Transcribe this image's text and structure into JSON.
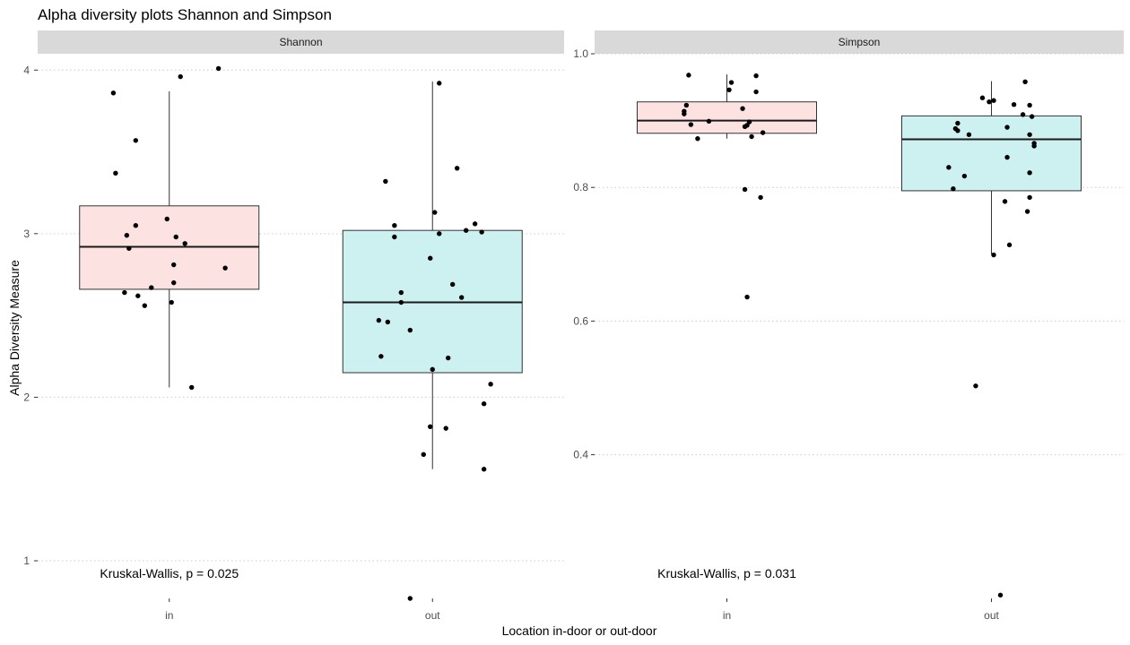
{
  "chart_data": {
    "type": "box",
    "title": "Alpha diversity plots Shannon and Simpson",
    "xlabel": "Location in-door or out-door",
    "ylabel": "Alpha Diversity Measure",
    "grid": "horizontal dotted major lines",
    "legend": "none",
    "categories": [
      "in",
      "out"
    ],
    "colors": {
      "in": "#fde2e2",
      "out": "#cdf0f1",
      "box_stroke": "#333333",
      "strip": "#d9d9d9",
      "grid": "#cccccc",
      "point": "#000000"
    },
    "panels": [
      {
        "name": "Shannon",
        "ylim": [
          0.77,
          4.1
        ],
        "yticks": [
          1,
          2,
          3,
          4
        ],
        "ytick_labels": [
          "1",
          "2",
          "3",
          "4"
        ],
        "boxes": [
          {
            "category": "in",
            "whisker_low": 2.06,
            "q1": 2.66,
            "median": 2.92,
            "q3": 3.17,
            "whisker_high": 3.87
          },
          {
            "category": "out",
            "whisker_low": 1.56,
            "q1": 2.15,
            "median": 2.58,
            "q3": 3.02,
            "whisker_high": 3.93
          }
        ],
        "points": [
          {
            "category": "in",
            "jitter": -0.25,
            "y": 3.86
          },
          {
            "category": "in",
            "jitter": 0.05,
            "y": 3.96
          },
          {
            "category": "in",
            "jitter": 0.22,
            "y": 4.01
          },
          {
            "category": "in",
            "jitter": -0.15,
            "y": 3.57
          },
          {
            "category": "in",
            "jitter": -0.24,
            "y": 3.37
          },
          {
            "category": "in",
            "jitter": -0.01,
            "y": 3.09
          },
          {
            "category": "in",
            "jitter": -0.15,
            "y": 3.05
          },
          {
            "category": "in",
            "jitter": -0.19,
            "y": 2.99
          },
          {
            "category": "in",
            "jitter": 0.03,
            "y": 2.98
          },
          {
            "category": "in",
            "jitter": 0.07,
            "y": 2.94
          },
          {
            "category": "in",
            "jitter": -0.18,
            "y": 2.91
          },
          {
            "category": "in",
            "jitter": 0.02,
            "y": 2.81
          },
          {
            "category": "in",
            "jitter": 0.25,
            "y": 2.79
          },
          {
            "category": "in",
            "jitter": 0.02,
            "y": 2.7
          },
          {
            "category": "in",
            "jitter": -0.08,
            "y": 2.67
          },
          {
            "category": "in",
            "jitter": -0.2,
            "y": 2.64
          },
          {
            "category": "in",
            "jitter": -0.14,
            "y": 2.62
          },
          {
            "category": "in",
            "jitter": 0.01,
            "y": 2.58
          },
          {
            "category": "in",
            "jitter": -0.11,
            "y": 2.56
          },
          {
            "category": "in",
            "jitter": 0.1,
            "y": 2.06
          },
          {
            "category": "out",
            "jitter": 0.03,
            "y": 3.92
          },
          {
            "category": "out",
            "jitter": 0.11,
            "y": 3.4
          },
          {
            "category": "out",
            "jitter": -0.21,
            "y": 3.32
          },
          {
            "category": "out",
            "jitter": 0.01,
            "y": 3.13
          },
          {
            "category": "out",
            "jitter": -0.17,
            "y": 3.05
          },
          {
            "category": "out",
            "jitter": 0.19,
            "y": 3.06
          },
          {
            "category": "out",
            "jitter": 0.15,
            "y": 3.02
          },
          {
            "category": "out",
            "jitter": 0.22,
            "y": 3.01
          },
          {
            "category": "out",
            "jitter": 0.03,
            "y": 3.0
          },
          {
            "category": "out",
            "jitter": -0.17,
            "y": 2.98
          },
          {
            "category": "out",
            "jitter": -0.01,
            "y": 2.85
          },
          {
            "category": "out",
            "jitter": 0.09,
            "y": 2.69
          },
          {
            "category": "out",
            "jitter": -0.14,
            "y": 2.64
          },
          {
            "category": "out",
            "jitter": 0.13,
            "y": 2.61
          },
          {
            "category": "out",
            "jitter": -0.14,
            "y": 2.58
          },
          {
            "category": "out",
            "jitter": -0.24,
            "y": 2.47
          },
          {
            "category": "out",
            "jitter": -0.2,
            "y": 2.46
          },
          {
            "category": "out",
            "jitter": -0.1,
            "y": 2.41
          },
          {
            "category": "out",
            "jitter": -0.23,
            "y": 2.25
          },
          {
            "category": "out",
            "jitter": 0.07,
            "y": 2.24
          },
          {
            "category": "out",
            "jitter": 0.0,
            "y": 2.17
          },
          {
            "category": "out",
            "jitter": 0.26,
            "y": 2.08
          },
          {
            "category": "out",
            "jitter": 0.23,
            "y": 1.96
          },
          {
            "category": "out",
            "jitter": -0.01,
            "y": 1.82
          },
          {
            "category": "out",
            "jitter": 0.06,
            "y": 1.81
          },
          {
            "category": "out",
            "jitter": -0.04,
            "y": 1.65
          },
          {
            "category": "out",
            "jitter": 0.23,
            "y": 1.56
          },
          {
            "category": "out",
            "jitter": -0.1,
            "y": 0.77
          }
        ],
        "annotation": "Kruskal-Wallis, p = 0.025"
      },
      {
        "name": "Simpson",
        "ylim": [
          0.185,
          1.0
        ],
        "yticks": [
          0.4,
          0.6,
          0.8,
          1.0
        ],
        "ytick_labels": [
          "0.4",
          "0.6",
          "0.8",
          "1.0"
        ],
        "boxes": [
          {
            "category": "in",
            "whisker_low": 0.873,
            "q1": 0.881,
            "median": 0.9,
            "q3": 0.928,
            "whisker_high": 0.969
          },
          {
            "category": "out",
            "whisker_low": 0.7,
            "q1": 0.795,
            "median": 0.872,
            "q3": 0.907,
            "whisker_high": 0.959
          }
        ],
        "points": [
          {
            "category": "in",
            "jitter": -0.17,
            "y": 0.968
          },
          {
            "category": "in",
            "jitter": 0.13,
            "y": 0.967
          },
          {
            "category": "in",
            "jitter": 0.02,
            "y": 0.957
          },
          {
            "category": "in",
            "jitter": 0.01,
            "y": 0.946
          },
          {
            "category": "in",
            "jitter": 0.13,
            "y": 0.943
          },
          {
            "category": "in",
            "jitter": -0.18,
            "y": 0.923
          },
          {
            "category": "in",
            "jitter": 0.07,
            "y": 0.918
          },
          {
            "category": "in",
            "jitter": -0.19,
            "y": 0.914
          },
          {
            "category": "in",
            "jitter": -0.19,
            "y": 0.91
          },
          {
            "category": "in",
            "jitter": -0.08,
            "y": 0.899
          },
          {
            "category": "in",
            "jitter": 0.1,
            "y": 0.898
          },
          {
            "category": "in",
            "jitter": -0.16,
            "y": 0.894
          },
          {
            "category": "in",
            "jitter": 0.09,
            "y": 0.893
          },
          {
            "category": "in",
            "jitter": 0.08,
            "y": 0.891
          },
          {
            "category": "in",
            "jitter": 0.16,
            "y": 0.882
          },
          {
            "category": "in",
            "jitter": 0.11,
            "y": 0.876
          },
          {
            "category": "in",
            "jitter": -0.13,
            "y": 0.873
          },
          {
            "category": "in",
            "jitter": 0.08,
            "y": 0.797
          },
          {
            "category": "in",
            "jitter": 0.15,
            "y": 0.785
          },
          {
            "category": "in",
            "jitter": 0.09,
            "y": 0.636
          },
          {
            "category": "out",
            "jitter": 0.15,
            "y": 0.958
          },
          {
            "category": "out",
            "jitter": -0.04,
            "y": 0.934
          },
          {
            "category": "out",
            "jitter": -0.01,
            "y": 0.928
          },
          {
            "category": "out",
            "jitter": 0.01,
            "y": 0.93
          },
          {
            "category": "out",
            "jitter": 0.1,
            "y": 0.924
          },
          {
            "category": "out",
            "jitter": 0.17,
            "y": 0.923
          },
          {
            "category": "out",
            "jitter": 0.14,
            "y": 0.909
          },
          {
            "category": "out",
            "jitter": 0.18,
            "y": 0.906
          },
          {
            "category": "out",
            "jitter": -0.15,
            "y": 0.896
          },
          {
            "category": "out",
            "jitter": 0.07,
            "y": 0.89
          },
          {
            "category": "out",
            "jitter": -0.16,
            "y": 0.888
          },
          {
            "category": "out",
            "jitter": -0.15,
            "y": 0.885
          },
          {
            "category": "out",
            "jitter": -0.1,
            "y": 0.879
          },
          {
            "category": "out",
            "jitter": 0.17,
            "y": 0.879
          },
          {
            "category": "out",
            "jitter": 0.19,
            "y": 0.866
          },
          {
            "category": "out",
            "jitter": 0.19,
            "y": 0.862
          },
          {
            "category": "out",
            "jitter": 0.07,
            "y": 0.845
          },
          {
            "category": "out",
            "jitter": -0.19,
            "y": 0.83
          },
          {
            "category": "out",
            "jitter": 0.17,
            "y": 0.822
          },
          {
            "category": "out",
            "jitter": -0.12,
            "y": 0.817
          },
          {
            "category": "out",
            "jitter": -0.17,
            "y": 0.798
          },
          {
            "category": "out",
            "jitter": 0.17,
            "y": 0.785
          },
          {
            "category": "out",
            "jitter": 0.06,
            "y": 0.779
          },
          {
            "category": "out",
            "jitter": 0.16,
            "y": 0.764
          },
          {
            "category": "out",
            "jitter": 0.08,
            "y": 0.714
          },
          {
            "category": "out",
            "jitter": 0.01,
            "y": 0.699
          },
          {
            "category": "out",
            "jitter": -0.07,
            "y": 0.503
          },
          {
            "category": "out",
            "jitter": 0.04,
            "y": 0.19
          }
        ],
        "annotation": "Kruskal-Wallis, p = 0.031"
      }
    ]
  }
}
